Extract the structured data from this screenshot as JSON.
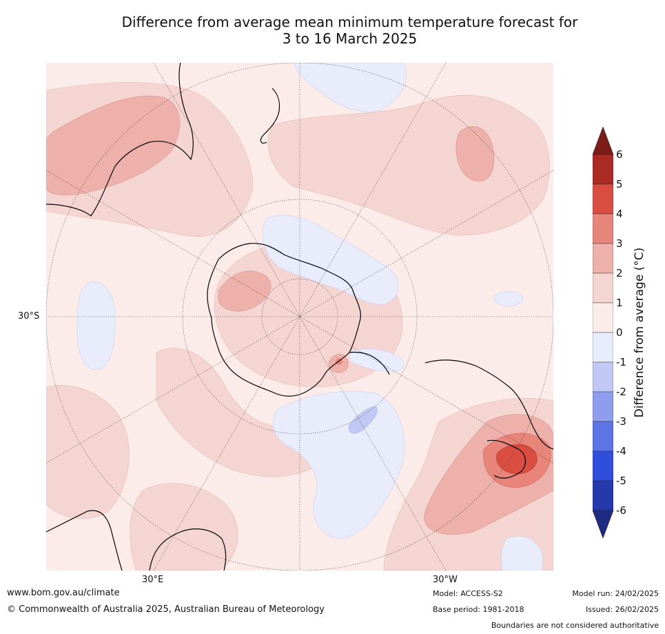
{
  "title_line1": "Difference from average mean minimum temperature forecast for",
  "title_line2": "3 to 16 March 2025",
  "map": {
    "projection": "south-polar-stereographic",
    "lat_label": "30°S",
    "lon_labels": [
      "30°E",
      "30°W"
    ]
  },
  "colorbar": {
    "label": "Difference from average (°C)",
    "ticks": [
      "6",
      "5",
      "4",
      "3",
      "2",
      "1",
      "0",
      "-1",
      "-2",
      "-3",
      "-4",
      "-5",
      "-6"
    ],
    "colors": [
      "#7b1c16",
      "#ab2b24",
      "#d94e41",
      "#e7857b",
      "#eeb0aa",
      "#f5d5d2",
      "#fbecea",
      "#e8ecfb",
      "#c0c8f3",
      "#8e9ded",
      "#5d74e6",
      "#2f4edb",
      "#243aac",
      "#1d2c82"
    ]
  },
  "footer": {
    "website": "www.bom.gov.au/climate",
    "copyright": "© Commonwealth of Australia 2025, Australian Bureau of Meteorology",
    "model": "Model: ACCESS-S2",
    "base_period": "Base period: 1981-2018",
    "model_run": "Model run: 24/02/2025",
    "issued": "Issued: 26/02/2025",
    "disclaimer": "Boundaries are not considered authoritative"
  }
}
